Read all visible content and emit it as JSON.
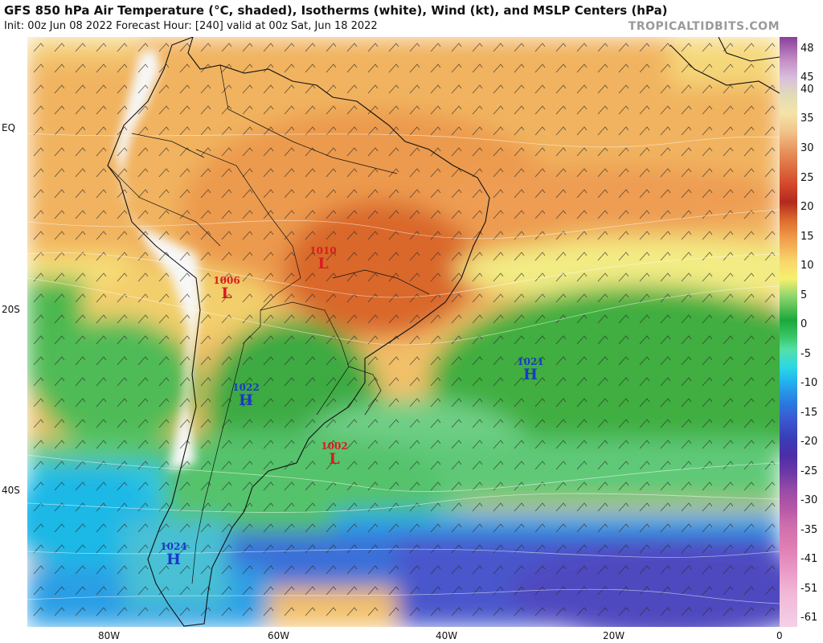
{
  "header": {
    "title": "GFS 850 hPa Air Temperature (°C, shaded), Isotherms (white), Wind (kt), and MSLP Centers (hPa)",
    "subtitle": "Init: 00z Jun 08 2022   Forecast Hour: [240]   valid at 00z Sat, Jun 18 2022",
    "brand": "TROPICALTIDBITS.COM"
  },
  "lat_labels": [
    "EQ",
    "20S",
    "40S"
  ],
  "lon_labels": [
    "80W",
    "60W",
    "40W",
    "20W",
    "0"
  ],
  "colorbar": {
    "labels": [
      "48",
      "45",
      "40",
      "35",
      "30",
      "25",
      "20",
      "15",
      "10",
      "5",
      "0",
      "-5",
      "-10",
      "-15",
      "-20",
      "-25",
      "-30",
      "-35",
      "-41",
      "-51",
      "-61"
    ]
  },
  "pressure_centers": [
    {
      "type": "L",
      "value": "1010"
    },
    {
      "type": "L",
      "value": "1006"
    },
    {
      "type": "H",
      "value": "1021"
    },
    {
      "type": "H",
      "value": "1022"
    },
    {
      "type": "L",
      "value": "1002"
    },
    {
      "type": "H",
      "value": "1024"
    }
  ]
}
